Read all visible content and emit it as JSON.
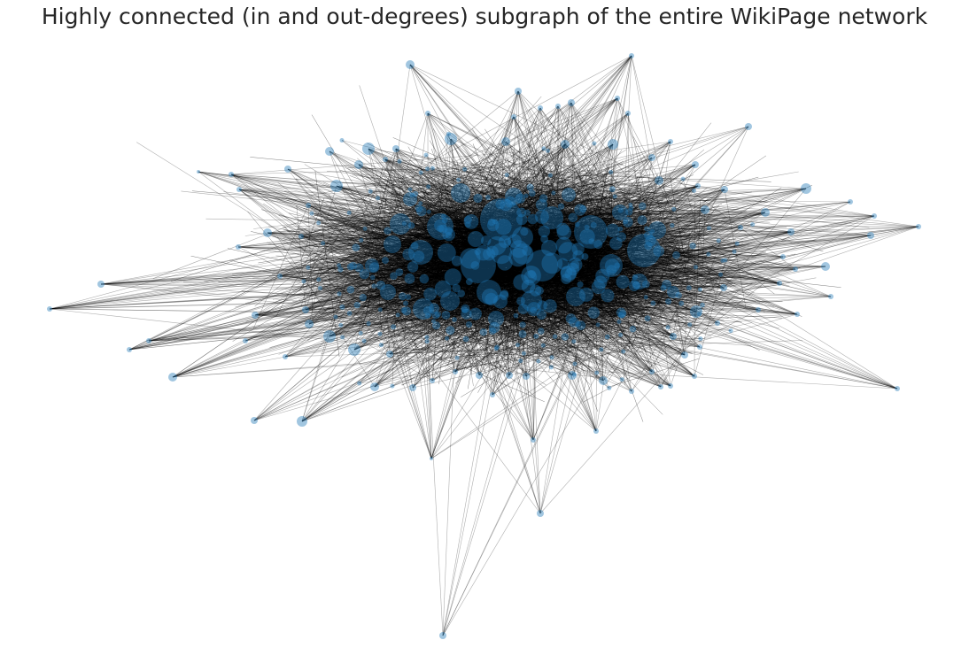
{
  "title": "Highly connected (in and out-degrees) subgraph of the entire WikiPage network",
  "colors": {
    "node": "#1f77b4",
    "edge": "#000000",
    "background": "#ffffff"
  },
  "graph": {
    "layout": "force-directed",
    "node_size_encodes": "degree"
  }
}
